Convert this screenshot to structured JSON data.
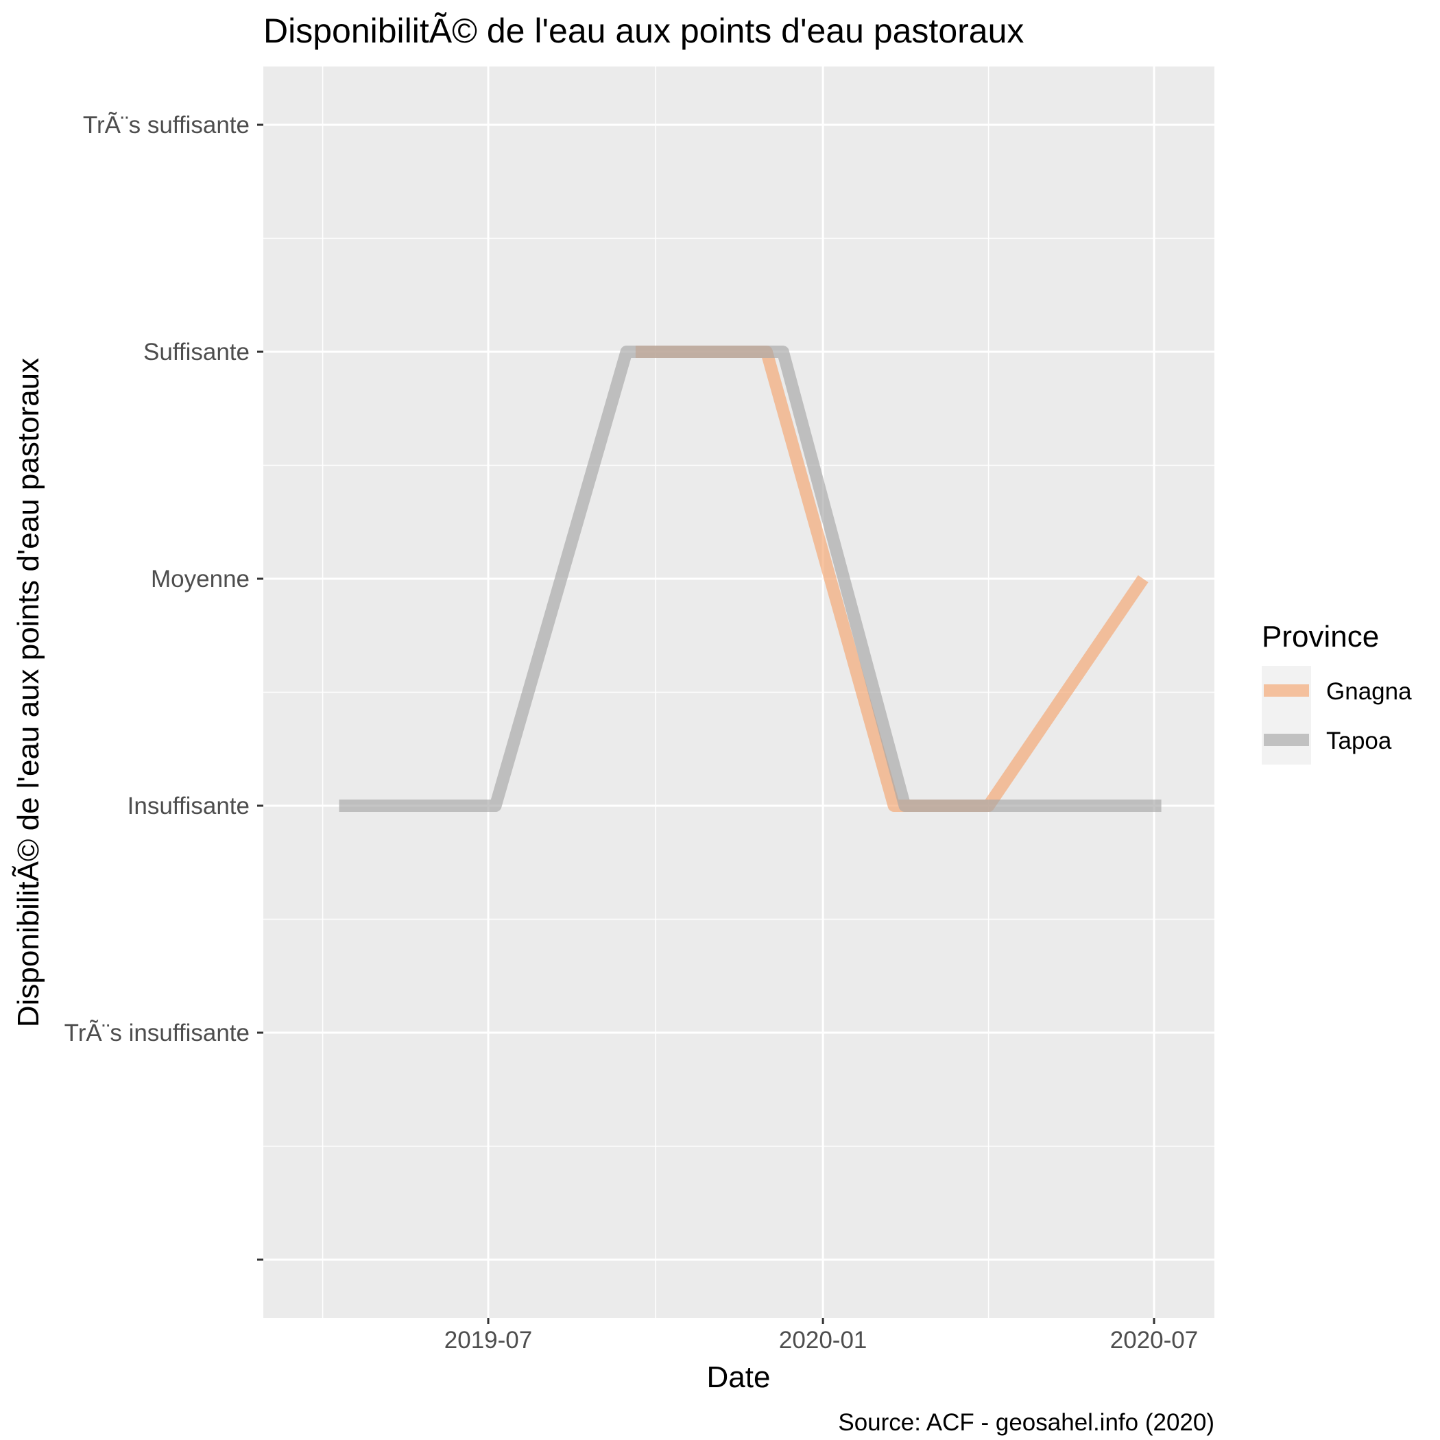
{
  "chart_data": {
    "type": "line",
    "title": "DisponibilitÃ© de l'eau aux points d'eau pastoraux",
    "xlabel": "Date",
    "ylabel": "DisponibilitÃ© de l'eau aux points d'eau pastoraux",
    "caption": "Source: ACF - geosahel.info  (2020)",
    "x_ticks": [
      "2019-07",
      "2020-01",
      "2020-07"
    ],
    "y_categories": [
      "",
      "TrÃ¨s insuffisante",
      "Insuffisante",
      "Moyenne",
      "Suffisante",
      "TrÃ¨s suffisante"
    ],
    "legend": {
      "title": "Province",
      "position": "right"
    },
    "grid": true,
    "series": [
      {
        "name": "Gnagna",
        "color": "#f4a46f",
        "points": [
          {
            "x": "2019-09-20",
            "y": "Suffisante"
          },
          {
            "x": "2019-12-01",
            "y": "Suffisante"
          },
          {
            "x": "2020-02-09",
            "y": "Insuffisante"
          },
          {
            "x": "2020-04-01",
            "y": "Insuffisante"
          },
          {
            "x": "2020-06-25",
            "y": "Moyenne"
          }
        ]
      },
      {
        "name": "Tapoa",
        "color": "#a6a6a6",
        "points": [
          {
            "x": "2019-04-10",
            "y": "Insuffisante"
          },
          {
            "x": "2019-07-05",
            "y": "Insuffisante"
          },
          {
            "x": "2019-09-15",
            "y": "Suffisante"
          },
          {
            "x": "2019-12-10",
            "y": "Suffisante"
          },
          {
            "x": "2020-02-15",
            "y": "Insuffisante"
          },
          {
            "x": "2020-07-05",
            "y": "Insuffisante"
          }
        ]
      }
    ]
  }
}
